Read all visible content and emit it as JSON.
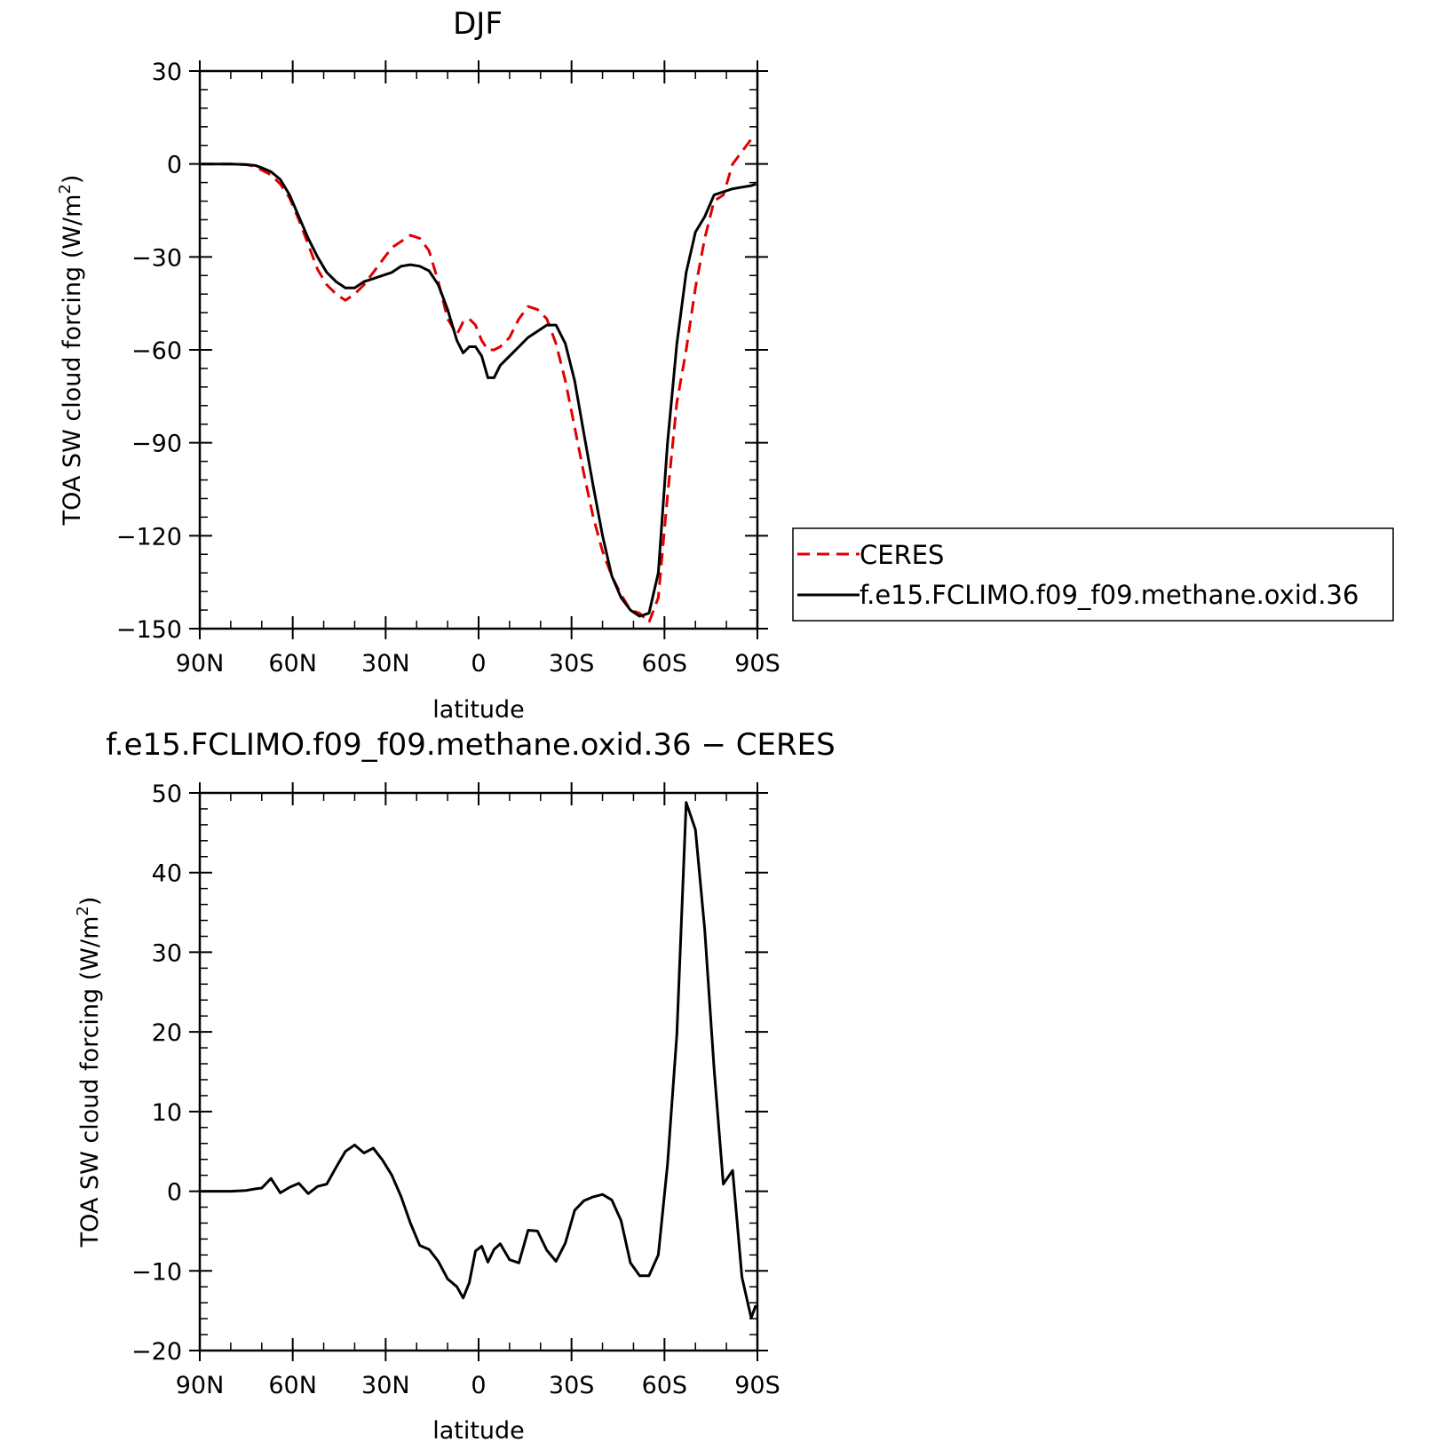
{
  "chart_data": [
    {
      "type": "line",
      "title": "DJF",
      "xlabel": "latitude",
      "ylabel": "TOA SW cloud forcing (W/m²)",
      "ylabel_main": "TOA SW cloud forcing (W/m",
      "ylabel_sup": "2",
      "ylabel_close": ")",
      "xlim": [
        90,
        -90
      ],
      "ylim": [
        -150,
        30
      ],
      "x_ticks": [
        {
          "value": 90,
          "label": "90N"
        },
        {
          "value": 60,
          "label": "60N"
        },
        {
          "value": 30,
          "label": "30N"
        },
        {
          "value": 0,
          "label": "0"
        },
        {
          "value": -30,
          "label": "30S"
        },
        {
          "value": -60,
          "label": "60S"
        },
        {
          "value": -90,
          "label": "90S"
        }
      ],
      "y_ticks": [
        {
          "value": 30,
          "label": "30"
        },
        {
          "value": 0,
          "label": "0"
        },
        {
          "value": -30,
          "label": "−30"
        },
        {
          "value": -60,
          "label": "−60"
        },
        {
          "value": -90,
          "label": "−90"
        },
        {
          "value": -120,
          "label": "−120"
        },
        {
          "value": -150,
          "label": "−150"
        }
      ],
      "legend_position": "right",
      "series": [
        {
          "name": "CERES",
          "color": "#e00000",
          "dash": "dashed",
          "x": [
            89.5,
            85,
            80,
            75,
            72,
            70,
            67,
            64,
            61,
            58,
            55,
            52,
            49,
            46,
            43,
            40,
            37,
            34,
            31,
            28,
            25,
            22,
            19,
            16,
            13,
            10,
            7,
            5,
            3,
            1,
            -1,
            -3,
            -5,
            -7,
            -10,
            -13,
            -16,
            -19,
            -22,
            -25,
            -28,
            -31,
            -34,
            -37,
            -40,
            -43,
            -46,
            -49,
            -52,
            -55,
            -58,
            -61,
            -64,
            -67,
            -70,
            -73,
            -76,
            -79,
            -82,
            -85,
            -88,
            -89.5
          ],
          "y": [
            0,
            0,
            0,
            -0.2,
            -0.8,
            -2,
            -3.5,
            -6.5,
            -11,
            -18,
            -26,
            -34,
            -39,
            -42,
            -44,
            -42,
            -39,
            -35,
            -31,
            -27,
            -25,
            -23,
            -24,
            -28,
            -38,
            -50,
            -55,
            -51,
            -50,
            -52,
            -57,
            -60,
            -60,
            -59,
            -56,
            -50,
            -46,
            -47,
            -50,
            -58,
            -70,
            -85,
            -100,
            -114,
            -125,
            -133,
            -139,
            -144,
            -145,
            -148,
            -140,
            -107,
            -77,
            -60,
            -40,
            -24,
            -12,
            -10,
            0,
            4,
            8,
            8
          ]
        },
        {
          "name": "f.e15.FCLIMO.f09_f09.methane.oxid.36",
          "color": "#000000",
          "dash": "solid",
          "x": [
            89.5,
            85,
            80,
            75,
            72,
            70,
            67,
            64,
            61,
            58,
            55,
            52,
            49,
            46,
            43,
            40,
            37,
            34,
            31,
            28,
            25,
            22,
            19,
            16,
            13,
            10,
            7,
            5,
            3,
            1,
            -1,
            -3,
            -5,
            -7,
            -10,
            -13,
            -16,
            -19,
            -22,
            -25,
            -28,
            -31,
            -34,
            -37,
            -40,
            -43,
            -46,
            -49,
            -52,
            -55,
            -58,
            -61,
            -64,
            -67,
            -70,
            -73,
            -76,
            -79,
            -82,
            -85,
            -88,
            -89.5
          ],
          "y": [
            0,
            0,
            0,
            -0.2,
            -0.5,
            -1.2,
            -2.5,
            -5,
            -10,
            -17,
            -24,
            -30,
            -35,
            -38,
            -40,
            -40,
            -38,
            -37,
            -36,
            -35,
            -33,
            -32.5,
            -33,
            -34.5,
            -39,
            -47,
            -57,
            -61,
            -59,
            -59,
            -62,
            -69,
            -69,
            -65,
            -62,
            -59,
            -56,
            -54,
            -52,
            -52,
            -58,
            -70,
            -87,
            -104,
            -120,
            -133,
            -140,
            -144,
            -146,
            -145,
            -132,
            -90,
            -58,
            -35,
            -22,
            -17,
            -10,
            -9,
            -8,
            -7.5,
            -7,
            -6.5
          ]
        }
      ]
    },
    {
      "type": "line",
      "title": "f.e15.FCLIMO.f09_f09.methane.oxid.36 − CERES",
      "xlabel": "latitude",
      "ylabel": "TOA SW cloud forcing (W/m²)",
      "ylabel_main": "TOA SW cloud forcing (W/m",
      "ylabel_sup": "2",
      "ylabel_close": ")",
      "xlim": [
        90,
        -90
      ],
      "ylim": [
        -20,
        50
      ],
      "x_ticks": [
        {
          "value": 90,
          "label": "90N"
        },
        {
          "value": 60,
          "label": "60N"
        },
        {
          "value": 30,
          "label": "30N"
        },
        {
          "value": 0,
          "label": "0"
        },
        {
          "value": -30,
          "label": "30S"
        },
        {
          "value": -60,
          "label": "60S"
        },
        {
          "value": -90,
          "label": "90S"
        }
      ],
      "y_ticks": [
        {
          "value": 50,
          "label": "50"
        },
        {
          "value": 40,
          "label": "40"
        },
        {
          "value": 30,
          "label": "30"
        },
        {
          "value": 20,
          "label": "20"
        },
        {
          "value": 10,
          "label": "10"
        },
        {
          "value": 0,
          "label": "0"
        },
        {
          "value": -10,
          "label": "−10"
        },
        {
          "value": -20,
          "label": "−20"
        }
      ],
      "series": [
        {
          "color": "#000000",
          "dash": "solid",
          "x": [
            89.5,
            85,
            80,
            75,
            72,
            70,
            67,
            64,
            61,
            58,
            55,
            52,
            49,
            46,
            43,
            40,
            37,
            34,
            31,
            28,
            25,
            22,
            19,
            16,
            13,
            10,
            7,
            5,
            3,
            1,
            -1,
            -3,
            -5,
            -7,
            -10,
            -13,
            -16,
            -19,
            -22,
            -25,
            -28,
            -31,
            -34,
            -37,
            -40,
            -43,
            -46,
            -49,
            -52,
            -55,
            -58,
            -61,
            -64,
            -67,
            -70,
            -73,
            -76,
            -79,
            -82,
            -85,
            -88,
            -89.5
          ],
          "y": [
            0,
            0,
            0,
            0.1,
            0.3,
            0.4,
            1.6,
            -0.2,
            0.5,
            1,
            -0.3,
            0.6,
            0.9,
            3,
            5,
            5.8,
            4.8,
            5.4,
            3.9,
            2,
            -0.7,
            -4,
            -6.8,
            -7.3,
            -8.8,
            -11,
            -12,
            -13.4,
            -11.5,
            -7.5,
            -6.9,
            -8.9,
            -7.3,
            -6.6,
            -8.6,
            -9,
            -4.9,
            -5,
            -7.4,
            -8.8,
            -6.5,
            -2.4,
            -1.2,
            -0.7,
            -0.4,
            -1.1,
            -3.7,
            -9,
            -10.6,
            -10.6,
            -8,
            3.4,
            19.7,
            48.8,
            45.4,
            32.8,
            15.4,
            0.9,
            2.6,
            -10.8,
            -15.9,
            -14.3
          ]
        }
      ]
    }
  ]
}
